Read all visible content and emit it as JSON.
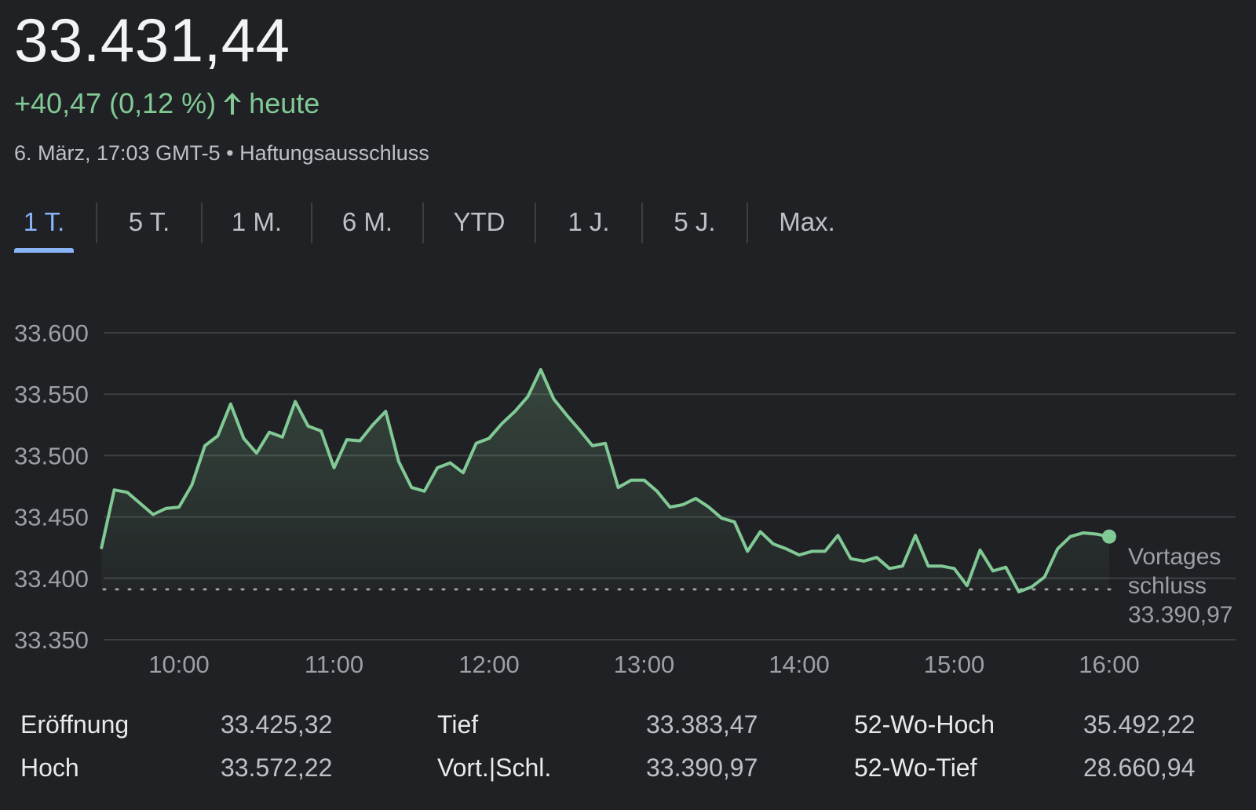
{
  "quote": {
    "price": "33.431,44",
    "change_text": "+40,47 (0,12 %)",
    "period_label": "heute",
    "timestamp": "6. März, 17:03 GMT-5",
    "separator": "•",
    "disclaimer": "Haftungsausschluss",
    "color_up": "#81c995"
  },
  "tabs": [
    {
      "label": "1 T.",
      "active": true
    },
    {
      "label": "5 T.",
      "active": false
    },
    {
      "label": "1 M.",
      "active": false
    },
    {
      "label": "6 M.",
      "active": false
    },
    {
      "label": "YTD",
      "active": false
    },
    {
      "label": "1 J.",
      "active": false
    },
    {
      "label": "5 J.",
      "active": false
    },
    {
      "label": "Max.",
      "active": false
    }
  ],
  "chart_data": {
    "type": "area",
    "y_ticks": [
      "33.600",
      "33.550",
      "33.500",
      "33.450",
      "33.400",
      "33.350"
    ],
    "y_tick_values": [
      33600,
      33550,
      33500,
      33450,
      33400,
      33350
    ],
    "x_ticks": [
      "10:00",
      "11:00",
      "12:00",
      "13:00",
      "14:00",
      "15:00",
      "16:00"
    ],
    "x_tick_values": [
      10,
      11,
      12,
      13,
      14,
      15,
      16
    ],
    "ylim": [
      33350,
      33600
    ],
    "xlim": [
      9.5,
      16.8
    ],
    "grid": true,
    "line_color": "#81c995",
    "reference": {
      "label_line1": "Vortages",
      "label_line2": "schluss",
      "value_text": "33.390,97",
      "value": 33390.97
    },
    "series": [
      {
        "x": [
          9.5,
          9.583,
          9.667,
          9.75,
          9.833,
          9.917,
          10,
          10.083,
          10.167,
          10.25,
          10.333,
          10.417,
          10.5,
          10.583,
          10.667,
          10.75,
          10.833,
          10.917,
          11,
          11.083,
          11.167,
          11.25,
          11.333,
          11.417,
          11.5,
          11.583,
          11.667,
          11.75,
          11.833,
          11.917,
          12,
          12.083,
          12.167,
          12.25,
          12.333,
          12.417,
          12.5,
          12.583,
          12.667,
          12.75,
          12.833,
          12.917,
          13,
          13.083,
          13.167,
          13.25,
          13.333,
          13.417,
          13.5,
          13.583,
          13.667,
          13.75,
          13.833,
          13.917,
          14,
          14.083,
          14.167,
          14.25,
          14.333,
          14.417,
          14.5,
          14.583,
          14.667,
          14.75,
          14.833,
          14.917,
          15,
          15.083,
          15.167,
          15.25,
          15.333,
          15.417,
          15.5,
          15.583,
          15.667,
          15.75,
          15.833,
          15.917,
          16
        ],
        "values": [
          33425,
          33472,
          33470,
          33461,
          33452,
          33457,
          33458,
          33476,
          33508,
          33516,
          33542,
          33514,
          33502,
          33519,
          33515,
          33544,
          33524,
          33520,
          33490,
          33513,
          33512,
          33525,
          33536,
          33495,
          33474,
          33471,
          33490,
          33494,
          33486,
          33510,
          33514,
          33526,
          33536,
          33548,
          33570,
          33546,
          33533,
          33521,
          33508,
          33510,
          33474,
          33480,
          33480,
          33471,
          33458,
          33460,
          33465,
          33458,
          33449,
          33446,
          33422,
          33438,
          33428,
          33424,
          33419,
          33422,
          33422,
          33435,
          33416,
          33414,
          33417,
          33408,
          33410,
          33435,
          33410,
          33410,
          33408,
          33394,
          33423,
          33406,
          33409,
          33389,
          33393,
          33401,
          33424,
          33434,
          33437,
          33436,
          33434
        ]
      }
    ]
  },
  "stats": [
    {
      "label": "Eröffnung",
      "value": "33.425,32"
    },
    {
      "label": "Hoch",
      "value": "33.572,22"
    },
    {
      "label": "Tief",
      "value": "33.383,47"
    },
    {
      "label": "Vort.|Schl.",
      "value": "33.390,97"
    },
    {
      "label": "52-Wo-Hoch",
      "value": "35.492,22"
    },
    {
      "label": "52-Wo-Tief",
      "value": "28.660,94"
    }
  ]
}
